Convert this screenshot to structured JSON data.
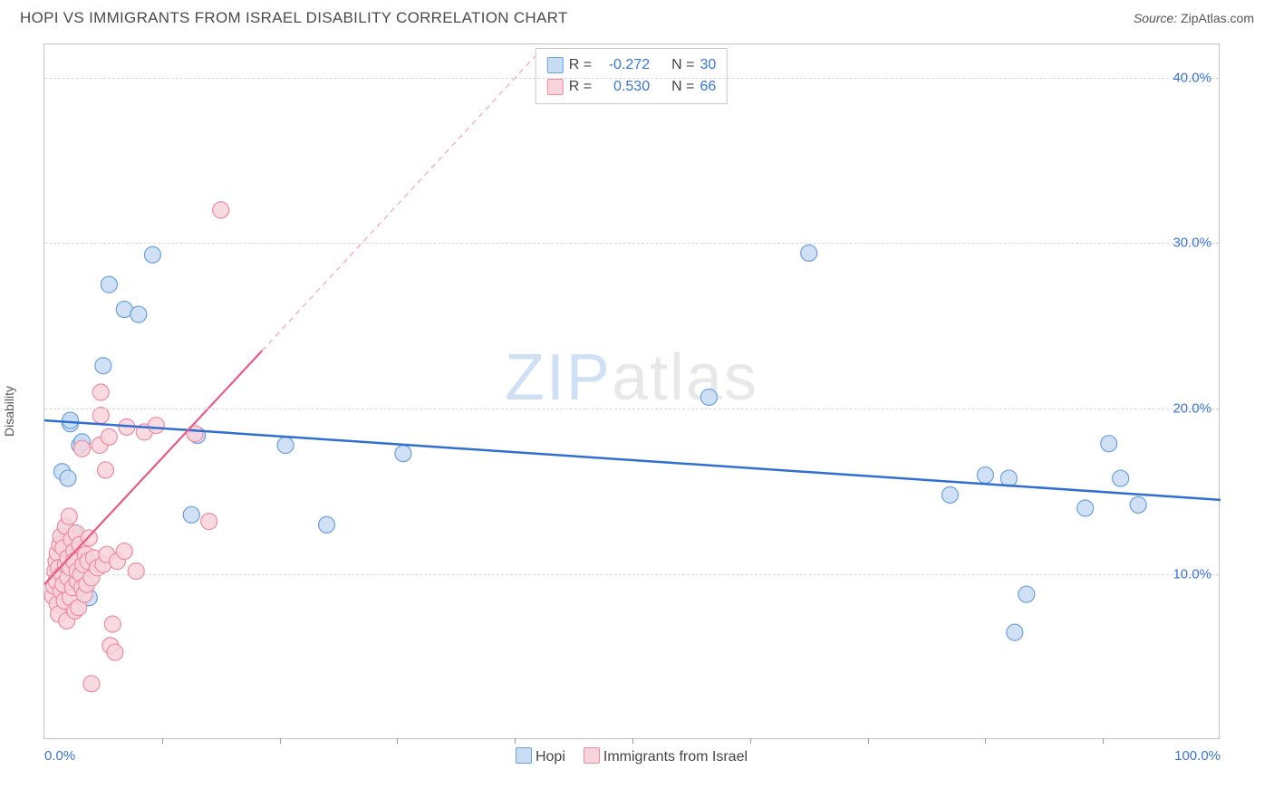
{
  "title": "HOPI VS IMMIGRANTS FROM ISRAEL DISABILITY CORRELATION CHART",
  "source_label": "Source:",
  "source_name": "ZipAtlas.com",
  "ylabel": "Disability",
  "watermark": {
    "zip": "ZIP",
    "atlas": "atlas"
  },
  "chart": {
    "type": "scatter",
    "xlim": [
      0,
      100
    ],
    "ylim": [
      0,
      42
    ],
    "background_color": "#ffffff",
    "grid_color": "#d8d8d8",
    "axis_color": "#c0c0c0",
    "tick_label_color": "#3875d7",
    "tick_fontsize": 15,
    "yticks": [
      {
        "v": 10,
        "label": "10.0%"
      },
      {
        "v": 20,
        "label": "20.0%"
      },
      {
        "v": 30,
        "label": "30.0%"
      },
      {
        "v": 40,
        "label": "40.0%"
      }
    ],
    "xticks_minor": [
      10,
      20,
      30,
      40,
      50,
      60,
      70,
      80,
      90
    ],
    "xticks_labeled": [
      {
        "v": 0,
        "label": "0.0%"
      },
      {
        "v": 100,
        "label": "100.0%"
      }
    ],
    "marker_radius": 9,
    "marker_stroke_width": 1.2,
    "series": [
      {
        "name": "Hopi",
        "fill": "#c8dcf3",
        "stroke": "#6aa0e0",
        "trend": {
          "x1": 0,
          "y1": 19.3,
          "x2": 100,
          "y2": 14.5,
          "color": "#2f6fd0",
          "width": 2.5,
          "dash": "none"
        },
        "points": [
          [
            1.5,
            16.2
          ],
          [
            2.2,
            19.1
          ],
          [
            2.2,
            19.3
          ],
          [
            2.5,
            12.5
          ],
          [
            3.0,
            17.8
          ],
          [
            3.2,
            18.0
          ],
          [
            3.8,
            8.6
          ],
          [
            5.0,
            22.6
          ],
          [
            5.5,
            27.5
          ],
          [
            6.8,
            26.0
          ],
          [
            8.0,
            25.7
          ],
          [
            9.2,
            29.3
          ],
          [
            12.5,
            13.6
          ],
          [
            13.0,
            18.4
          ],
          [
            20.5,
            17.8
          ],
          [
            24.0,
            13.0
          ],
          [
            30.5,
            17.3
          ],
          [
            56.5,
            20.7
          ],
          [
            65.0,
            29.4
          ],
          [
            77.0,
            14.8
          ],
          [
            80.0,
            16.0
          ],
          [
            82.0,
            15.8
          ],
          [
            82.5,
            6.5
          ],
          [
            83.5,
            8.8
          ],
          [
            88.5,
            14.0
          ],
          [
            90.5,
            17.9
          ],
          [
            91.5,
            15.8
          ],
          [
            93.0,
            14.2
          ],
          [
            2.0,
            15.8
          ],
          [
            1.8,
            12.8
          ]
        ]
      },
      {
        "name": "Immigrants from Israel",
        "fill": "#f7d3db",
        "stroke": "#ef8aa3",
        "trend": {
          "x1": 0,
          "y1": 9.4,
          "x2": 18.5,
          "y2": 23.5,
          "color": "#ea5a86",
          "width": 2.2,
          "dash": "none"
        },
        "trend_ext": {
          "x1": 18.5,
          "y1": 23.5,
          "x2": 42,
          "y2": 41.5,
          "color": "#f2a8bd",
          "width": 1.3,
          "dash": "6 5"
        },
        "points": [
          [
            0.7,
            8.7
          ],
          [
            0.8,
            9.3
          ],
          [
            0.9,
            10.2
          ],
          [
            1.0,
            10.8
          ],
          [
            1.0,
            9.6
          ],
          [
            1.1,
            11.3
          ],
          [
            1.1,
            8.2
          ],
          [
            1.2,
            10.4
          ],
          [
            1.2,
            7.6
          ],
          [
            1.3,
            11.8
          ],
          [
            1.4,
            9.0
          ],
          [
            1.4,
            12.3
          ],
          [
            1.5,
            10.0
          ],
          [
            1.6,
            9.4
          ],
          [
            1.6,
            11.6
          ],
          [
            1.7,
            8.4
          ],
          [
            1.8,
            12.9
          ],
          [
            1.8,
            10.6
          ],
          [
            1.9,
            7.2
          ],
          [
            2.0,
            11.0
          ],
          [
            2.0,
            9.8
          ],
          [
            2.1,
            13.5
          ],
          [
            2.2,
            10.4
          ],
          [
            2.2,
            8.6
          ],
          [
            2.3,
            12.1
          ],
          [
            2.4,
            9.2
          ],
          [
            2.5,
            11.4
          ],
          [
            2.5,
            10.8
          ],
          [
            2.6,
            7.8
          ],
          [
            2.7,
            12.5
          ],
          [
            2.8,
            9.6
          ],
          [
            2.8,
            10.2
          ],
          [
            2.9,
            8.0
          ],
          [
            3.0,
            11.8
          ],
          [
            3.1,
            10.0
          ],
          [
            3.2,
            9.2
          ],
          [
            3.3,
            10.6
          ],
          [
            3.4,
            8.8
          ],
          [
            3.5,
            11.2
          ],
          [
            3.6,
            9.4
          ],
          [
            3.7,
            10.8
          ],
          [
            3.8,
            12.2
          ],
          [
            4.0,
            9.8
          ],
          [
            4.2,
            11.0
          ],
          [
            4.5,
            10.4
          ],
          [
            4.7,
            17.8
          ],
          [
            4.8,
            21.0
          ],
          [
            4.8,
            19.6
          ],
          [
            5.0,
            10.6
          ],
          [
            5.2,
            16.3
          ],
          [
            5.3,
            11.2
          ],
          [
            5.5,
            18.3
          ],
          [
            5.6,
            5.7
          ],
          [
            5.8,
            7.0
          ],
          [
            6.0,
            5.3
          ],
          [
            6.2,
            10.8
          ],
          [
            6.8,
            11.4
          ],
          [
            7.0,
            18.9
          ],
          [
            7.8,
            10.2
          ],
          [
            8.5,
            18.6
          ],
          [
            9.5,
            19.0
          ],
          [
            12.8,
            18.5
          ],
          [
            14.0,
            13.2
          ],
          [
            15.0,
            32.0
          ],
          [
            4.0,
            3.4
          ],
          [
            3.2,
            17.6
          ]
        ]
      }
    ]
  },
  "legend_top": {
    "rows": [
      {
        "swatch_fill": "#c8dcf3",
        "swatch_stroke": "#6aa0e0",
        "r_label": "R =",
        "r_value": "-0.272",
        "n_label": "N =",
        "n_value": "30"
      },
      {
        "swatch_fill": "#f7d3db",
        "swatch_stroke": "#ef8aa3",
        "r_label": "R =",
        "r_value": "0.530",
        "n_label": "N =",
        "n_value": "66"
      }
    ]
  },
  "legend_bottom": {
    "items": [
      {
        "swatch_fill": "#c8dcf3",
        "swatch_stroke": "#6aa0e0",
        "label": "Hopi"
      },
      {
        "swatch_fill": "#f7d3db",
        "swatch_stroke": "#ef8aa3",
        "label": "Immigrants from Israel"
      }
    ]
  }
}
